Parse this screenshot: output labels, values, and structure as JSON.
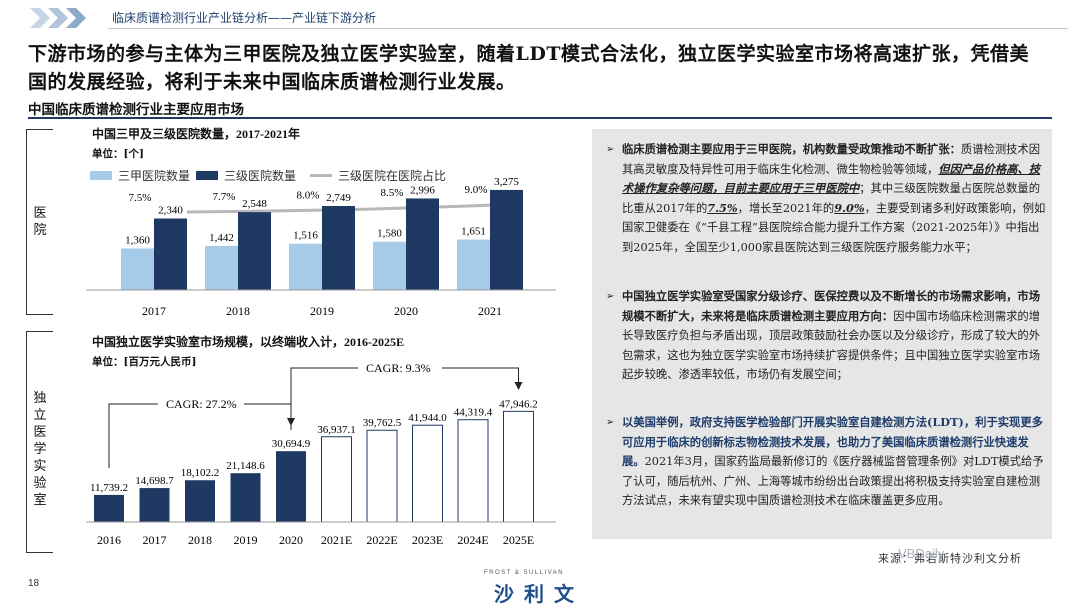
{
  "header": {
    "title": "临床质谱检测行业产业链分析——产业链下游分析"
  },
  "headline": "下游市场的参与主体为三甲医院及独立医学实验室，随着LDT模式合法化，独立医学实验室市场将高速扩张，凭借美国的发展经验，将利于未来中国临床质谱检测行业发展。",
  "section_title": "中国临床质谱检测行业主要应用市场",
  "side_labels": {
    "hospital": "医院",
    "lab": "独立医学实验室"
  },
  "chart_data": [
    {
      "type": "bar",
      "title": "中国三甲及三级医院数量，2017-2021年",
      "unit": "单位：[个]",
      "categories": [
        "2017",
        "2018",
        "2019",
        "2020",
        "2021"
      ],
      "series": [
        {
          "name": "三甲医院数量",
          "values": [
            1360,
            1442,
            1516,
            1580,
            1651
          ],
          "color": "#a6cbe8"
        },
        {
          "name": "三级医院数量",
          "values": [
            2340,
            2548,
            2749,
            2996,
            3275
          ],
          "color": "#1e3a63"
        }
      ],
      "line_series": {
        "name": "三级医院在医院占比",
        "values": [
          "7.5%",
          "7.7%",
          "8.0%",
          "8.5%",
          "9.0%"
        ],
        "color": "#b8b8b8"
      },
      "value_labels": {
        "a": [
          "1,360",
          "1,442",
          "1,516",
          "1,580",
          "1,651"
        ],
        "b": [
          "2,340",
          "2,548",
          "2,749",
          "2,996",
          "3,275"
        ]
      },
      "ylim": [
        0,
        3600
      ]
    },
    {
      "type": "bar",
      "title": "中国独立医学实验室市场规模，以终端收入计，2016-2025E",
      "unit": "单位：[百万元人民币]",
      "categories": [
        "2016",
        "2017",
        "2018",
        "2019",
        "2020",
        "2021E",
        "2022E",
        "2023E",
        "2024E",
        "2025E"
      ],
      "values": [
        11739.2,
        14698.7,
        18102.2,
        21148.6,
        30694.9,
        36937.1,
        39762.5,
        41944.0,
        44319.4,
        47946.2
      ],
      "value_labels": [
        "11,739.2",
        "14,698.7",
        "18,102.2",
        "21,148.6",
        "30,694.9",
        "36,937.1",
        "39,762.5",
        "41,944.0",
        "44,319.4",
        "47,946.2"
      ],
      "colors": {
        "actual": "#1e3a63",
        "forecast": "#ffffff",
        "forecast_border": "#1e3a63"
      },
      "annotations": [
        {
          "text": "CAGR: 27.2%",
          "from": "2016",
          "to": "2020"
        },
        {
          "text": "CAGR: 9.3%",
          "from": "2020",
          "to": "2025E"
        }
      ],
      "ylim": [
        0,
        52000
      ]
    }
  ],
  "paragraphs": {
    "p1_bullet": "➢",
    "p1_a": "临床质谱检测主要应用于三甲医院，机构数量受政策推动不断扩张：",
    "p1_b": "质谱检测技术因其高灵敏度及特异性可用于临床生化检测、微生物检验等领域，",
    "p1_c": "但因产品价格高、技术操作复杂等问题，目前主要应用于三甲医院中",
    "p1_d": "；其中三级医院数量占医院总数量的比重从2017年的",
    "p1_e": "7.5%",
    "p1_f": "，增长至2021年的",
    "p1_g": "9.0%",
    "p1_h": "，主要受到诸多利好政策影响，例如国家卫健委在《“千县工程”县医院综合能力提升工作方案（2021-2025年）》中指出到2025年，全国至少1,000家县医院达到三级医院医疗服务能力水平；",
    "p2_bullet": "➢",
    "p2_a": "中国独立医学实验室受国家分级诊疗、医保控费以及不断增长的市场需求影响，市场规模不断扩大，未来将是临床质谱检测主要应用方向：",
    "p2_b": "因中国市场临床检测需求的增长导致医疗负担与矛盾出现，顶层政策鼓励社会办医以及分级诊疗，形成了较大的外包需求，这也为独立医学实验室市场持续扩容提供条件；且中国独立医学实验室市场起步较晚、渗透率较低，市场仍有发展空间；",
    "p3_bullet": "➢",
    "p3_a": "以美国举例，政府支持医学检验部门开展实验室自建检测方法(LDT)，利于实现更多可应用于临床的创新标志物检测技术发展，也助力了美国临床质谱检测行业快速发展。",
    "p3_b": "2021年3月，国家药监局最新修订的《医疗器械监督管理条例》对LDT模式给予了认可，随后杭州、广州、上海等城市纷纷出台政策提出将积极支持实验室自建检测方法试点，未来有望实现中国质谱检测技术在临床覆盖更多应用。"
  },
  "footer": {
    "source": "来源：弗若斯特沙利文分析",
    "page": "18",
    "logo_en": "FROST & SULLIVAN",
    "logo_cn": "沙利文",
    "watermark": "VBDaily"
  }
}
